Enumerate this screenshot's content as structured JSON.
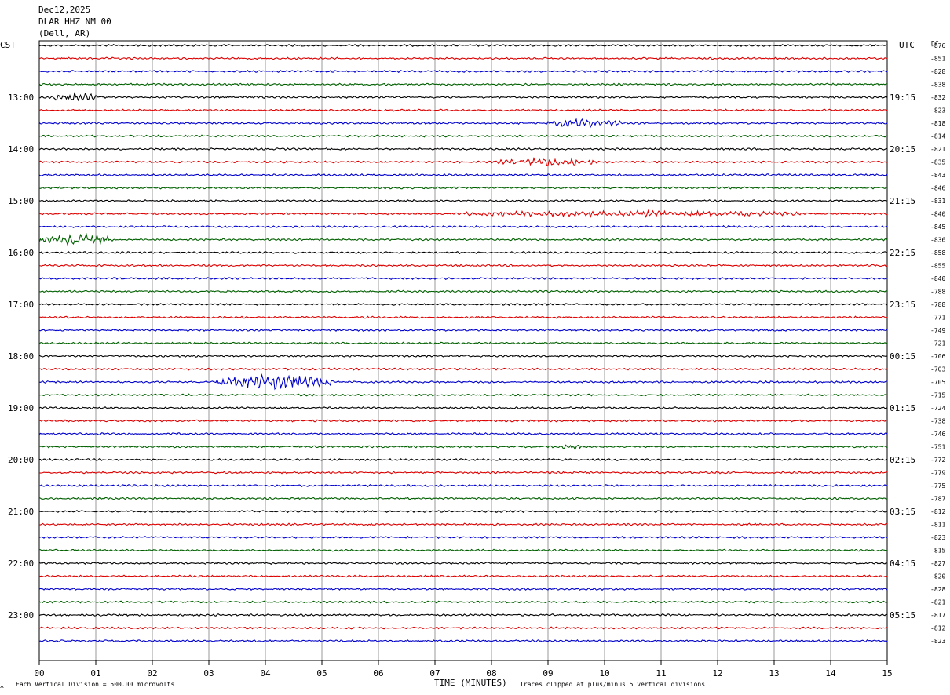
{
  "header": {
    "date": "Dec12,2025",
    "station": "DLAR HHZ NM 00",
    "location": "(Dell, AR)"
  },
  "left_tz": "CST",
  "right_tz": "UTC",
  "dc_header": "DC",
  "footer": {
    "corner_mark": "⟑",
    "scale_note": "Each Vertical Division =  500.00 microvolts",
    "clip_note": "Traces clipped at plus/minus 5 vertical divisions"
  },
  "colors": {
    "trace_cycle": [
      "#000000",
      "#dd0000",
      "#0000cc",
      "#006000"
    ],
    "grid": "#808080",
    "background": "#ffffff"
  },
  "chart_data": {
    "type": "line",
    "subtype": "helicorder",
    "xlabel": "TIME (MINUTES)",
    "xlim": [
      0,
      15
    ],
    "x_ticks": [
      "00",
      "01",
      "02",
      "03",
      "04",
      "05",
      "06",
      "07",
      "08",
      "09",
      "10",
      "11",
      "12",
      "13",
      "14",
      "15"
    ],
    "minutes_per_line": 15,
    "line_count": 47,
    "left_hour_labels": [
      {
        "line": 4,
        "text": "13:00"
      },
      {
        "line": 8,
        "text": "14:00"
      },
      {
        "line": 12,
        "text": "15:00"
      },
      {
        "line": 16,
        "text": "16:00"
      },
      {
        "line": 20,
        "text": "17:00"
      },
      {
        "line": 24,
        "text": "18:00"
      },
      {
        "line": 28,
        "text": "19:00"
      },
      {
        "line": 32,
        "text": "20:00"
      },
      {
        "line": 36,
        "text": "21:00"
      },
      {
        "line": 40,
        "text": "22:00"
      },
      {
        "line": 44,
        "text": "23:00"
      }
    ],
    "right_hour_labels": [
      {
        "line": 4,
        "text": "19:15"
      },
      {
        "line": 8,
        "text": "20:15"
      },
      {
        "line": 12,
        "text": "21:15"
      },
      {
        "line": 16,
        "text": "22:15"
      },
      {
        "line": 20,
        "text": "23:15"
      },
      {
        "line": 24,
        "text": "00:15"
      },
      {
        "line": 28,
        "text": "01:15"
      },
      {
        "line": 32,
        "text": "02:15"
      },
      {
        "line": 36,
        "text": "03:15"
      },
      {
        "line": 40,
        "text": "04:15"
      },
      {
        "line": 44,
        "text": "05:15"
      }
    ],
    "dc_offsets": [
      -876,
      -851,
      -828,
      -838,
      -832,
      -823,
      -818,
      -814,
      -821,
      -835,
      -843,
      -846,
      -831,
      -840,
      -845,
      -836,
      -858,
      -855,
      -840,
      -788,
      -788,
      -771,
      -749,
      -721,
      -706,
      -703,
      -705,
      -715,
      -724,
      -738,
      -746,
      -751,
      -772,
      -779,
      -775,
      -787,
      -812,
      -811,
      -823,
      -815,
      -827,
      -820,
      -828,
      -821,
      -817,
      -812,
      -823
    ],
    "events": [
      {
        "line": 4,
        "start_min": 0.2,
        "end_min": 1.1,
        "amplitude": 5
      },
      {
        "line": 6,
        "start_min": 9.0,
        "end_min": 10.3,
        "amplitude": 4
      },
      {
        "line": 9,
        "start_min": 8.0,
        "end_min": 9.8,
        "amplitude": 4
      },
      {
        "line": 13,
        "start_min": 7.5,
        "end_min": 13.5,
        "amplitude": 3
      },
      {
        "line": 15,
        "start_min": 0.0,
        "end_min": 1.3,
        "amplitude": 6
      },
      {
        "line": 26,
        "start_min": 3.1,
        "end_min": 5.2,
        "amplitude": 8
      },
      {
        "line": 31,
        "start_min": 9.2,
        "end_min": 9.6,
        "amplitude": 3
      }
    ]
  }
}
